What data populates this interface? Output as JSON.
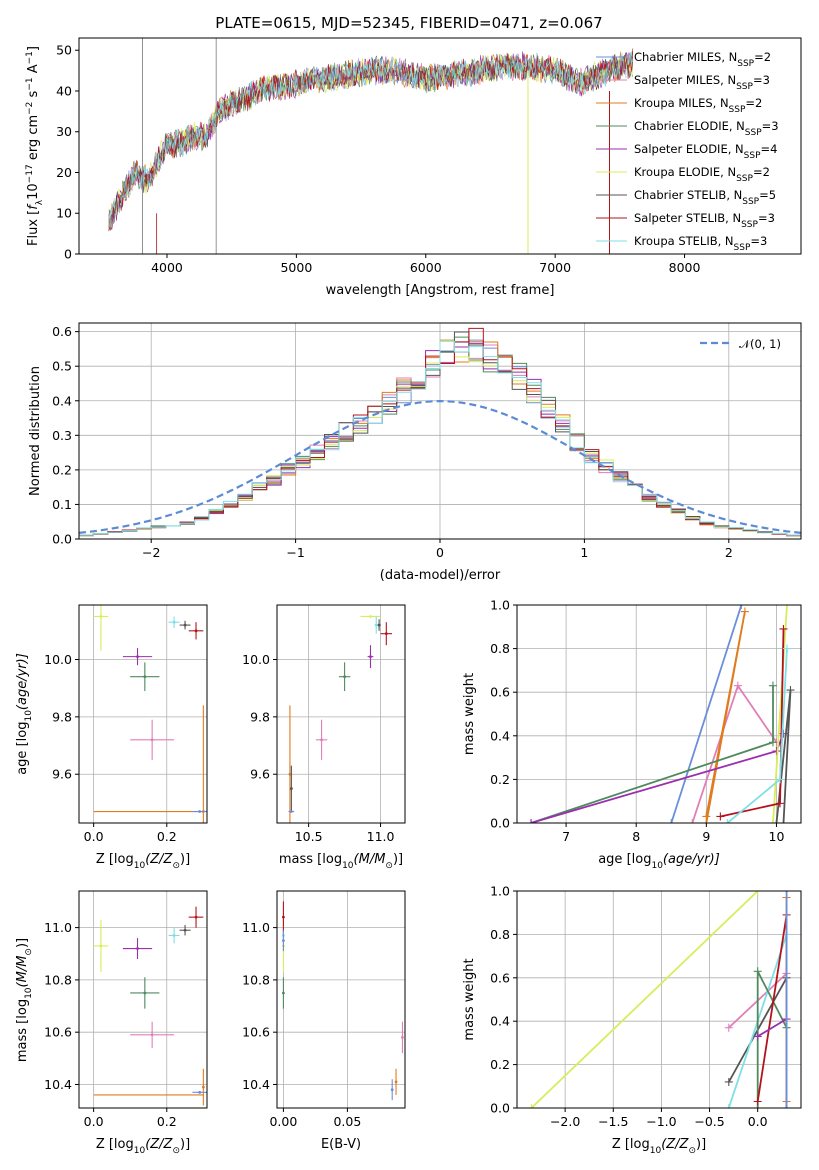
{
  "chart_data": [
    {
      "type": "line",
      "title": "PLATE=0615, MJD=52345, FIBERID=0471, z=0.067",
      "xlabel": "wavelength [Angstrom, rest frame]",
      "ylabel_parts": [
        "Flux [",
        "f",
        "λ",
        "10",
        "−17",
        " erg cm",
        "−2",
        " s",
        "−1",
        " A",
        "−1",
        "]"
      ],
      "xlim": [
        3320,
        8900
      ],
      "ylim": [
        0,
        53
      ],
      "xticks": [
        4000,
        5000,
        6000,
        7000,
        8000
      ],
      "yticks": [
        0,
        10,
        20,
        30,
        40,
        50
      ],
      "legend_position": "upper-right",
      "series": [
        {
          "name": "Chabrier MILES, N",
          "sub": "SSP",
          "suffix": "=2",
          "color": "#6a8fd8"
        },
        {
          "name": "Salpeter MILES, N",
          "sub": "SSP",
          "suffix": "=3",
          "color": "#e07fb8"
        },
        {
          "name": "Kroupa MILES, N",
          "sub": "SSP",
          "suffix": "=2",
          "color": "#e07b1e"
        },
        {
          "name": "Chabrier ELODIE, N",
          "sub": "SSP",
          "suffix": "=3",
          "color": "#4f8a5f"
        },
        {
          "name": "Salpeter ELODIE, N",
          "sub": "SSP",
          "suffix": "=4",
          "color": "#9b2fae"
        },
        {
          "name": "Kroupa ELODIE, N",
          "sub": "SSP",
          "suffix": "=2",
          "color": "#d9ec5a"
        },
        {
          "name": "Chabrier STELIB, N",
          "sub": "SSP",
          "suffix": "=5",
          "color": "#555555"
        },
        {
          "name": "Salpeter STELIB, N",
          "sub": "SSP",
          "suffix": "=3",
          "color": "#b3141c"
        },
        {
          "name": "Kroupa STELIB, N",
          "sub": "SSP",
          "suffix": "=3",
          "color": "#7fdfe6"
        }
      ],
      "spectrum_envelope": {
        "x": [
          3550,
          3650,
          3750,
          3850,
          3950,
          4000,
          4100,
          4200,
          4300,
          4400,
          4500,
          4600,
          4700,
          4800,
          4900,
          5000,
          5200,
          5400,
          5600,
          5800,
          6000,
          6200,
          6400,
          6600,
          6800,
          7000,
          7200,
          7400,
          7600
        ],
        "y": [
          8,
          14,
          20,
          18,
          24,
          27,
          27,
          29,
          29,
          35,
          37,
          38,
          40,
          41,
          41,
          42,
          43,
          44,
          45,
          45,
          43,
          44,
          45,
          46,
          46,
          45,
          42,
          45,
          47
        ]
      }
    },
    {
      "type": "step",
      "xlabel": "(data-model)/error",
      "ylabel": "Normed distribution",
      "xlim": [
        -2.5,
        2.5
      ],
      "ylim": [
        0,
        0.625
      ],
      "xticks": [
        -2,
        -1,
        0,
        1,
        2
      ],
      "yticks": [
        0.0,
        0.1,
        0.2,
        0.3,
        0.4,
        0.5,
        0.6
      ],
      "legend_position": "upper-right",
      "reference_curve": {
        "name_prefix": "𝒩",
        "name_suffix": "(0, 1)",
        "type": "gaussian",
        "mean": 0,
        "sigma": 1,
        "color": "#5b8bd6"
      },
      "bin_width": 0.1,
      "bin_start": -2.5,
      "envelope": [
        0.01,
        0.015,
        0.02,
        0.025,
        0.03,
        0.035,
        0.04,
        0.045,
        0.06,
        0.08,
        0.1,
        0.12,
        0.15,
        0.17,
        0.2,
        0.22,
        0.25,
        0.28,
        0.31,
        0.33,
        0.36,
        0.39,
        0.43,
        0.47,
        0.51,
        0.54,
        0.56,
        0.56,
        0.53,
        0.5,
        0.47,
        0.43,
        0.38,
        0.33,
        0.28,
        0.24,
        0.21,
        0.18,
        0.15,
        0.12,
        0.1,
        0.08,
        0.06,
        0.045,
        0.035,
        0.03,
        0.025,
        0.02,
        0.015,
        0.01
      ]
    },
    {
      "type": "scatter",
      "xlabel_parts": [
        "Z [log",
        "10",
        "(Z/Z",
        "⊙",
        ")]"
      ],
      "ylabel_parts": [
        "age  [log",
        "10",
        "(age/yr)]"
      ],
      "xlim": [
        -0.04,
        0.31
      ],
      "ylim": [
        9.43,
        10.19
      ],
      "xticks": [
        0.0,
        0.2
      ],
      "yticks": [
        9.6,
        9.8,
        10.0
      ],
      "points": [
        {
          "x": 0.02,
          "y": 10.15,
          "xerr": 0.02,
          "yerr": 0.12,
          "color": "#d9ec5a"
        },
        {
          "x": 0.12,
          "y": 10.01,
          "xerr": 0.04,
          "yerr": 0.03,
          "color": "#9b2fae"
        },
        {
          "x": 0.14,
          "y": 9.94,
          "xerr": 0.04,
          "yerr": 0.05,
          "color": "#4f8a5f"
        },
        {
          "x": 0.16,
          "y": 9.72,
          "xerr": 0.06,
          "yerr": 0.07,
          "color": "#e07fb8"
        },
        {
          "x": 0.22,
          "y": 10.13,
          "xerr": 0.015,
          "yerr": 0.02,
          "color": "#7fdfe6"
        },
        {
          "x": 0.25,
          "y": 10.12,
          "xerr": 0.015,
          "yerr": 0.015,
          "color": "#555555"
        },
        {
          "x": 0.28,
          "y": 10.1,
          "xerr": 0.02,
          "yerr": 0.03,
          "color": "#b3141c"
        },
        {
          "x": 0.3,
          "y": 9.47,
          "xerr": 0.0,
          "yerr": 0.37,
          "color": "#e07b1e"
        },
        {
          "x": 0.29,
          "y": 9.47,
          "xerr": 0.02,
          "yerr": 0.0,
          "color": "#6a8fd8"
        }
      ],
      "hlines": [
        {
          "y": 9.47,
          "x0": 0.0,
          "x1": 0.3,
          "color": "#e07b1e"
        }
      ]
    },
    {
      "type": "scatter",
      "xlabel_parts": [
        "mass [log",
        "10",
        "(M/M",
        "⊙",
        ")]"
      ],
      "xlim": [
        10.28,
        11.17
      ],
      "ylim": [
        9.43,
        10.19
      ],
      "xticks": [
        10.5,
        11.0
      ],
      "yticks": [
        9.6,
        9.8,
        10.0
      ],
      "points": [
        {
          "x": 10.93,
          "y": 10.15,
          "xerr": 0.07,
          "yerr": 0.0,
          "color": "#d9ec5a"
        },
        {
          "x": 10.93,
          "y": 10.01,
          "xerr": 0.02,
          "yerr": 0.04,
          "color": "#9b2fae"
        },
        {
          "x": 10.75,
          "y": 9.94,
          "xerr": 0.04,
          "yerr": 0.05,
          "color": "#4f8a5f"
        },
        {
          "x": 10.59,
          "y": 9.72,
          "xerr": 0.04,
          "yerr": 0.07,
          "color": "#e07fb8"
        },
        {
          "x": 10.97,
          "y": 10.12,
          "xerr": 0.01,
          "yerr": 0.03,
          "color": "#7fdfe6"
        },
        {
          "x": 10.99,
          "y": 10.12,
          "xerr": 0.01,
          "yerr": 0.02,
          "color": "#555555"
        },
        {
          "x": 11.04,
          "y": 10.09,
          "xerr": 0.04,
          "yerr": 0.04,
          "color": "#b3141c"
        },
        {
          "x": 10.37,
          "y": 9.6,
          "xerr": 0.0,
          "yerr": 0.24,
          "color": "#e07b1e"
        },
        {
          "x": 10.38,
          "y": 9.55,
          "xerr": 0.0,
          "yerr": 0.08,
          "color": "#555555"
        },
        {
          "x": 10.38,
          "y": 9.47,
          "xerr": 0.02,
          "yerr": 0.0,
          "color": "#6a8fd8"
        }
      ]
    },
    {
      "type": "line",
      "xlabel_parts": [
        "age  [log",
        "10",
        "(age/yr)]"
      ],
      "ylabel": "mass weight",
      "xlim": [
        6.3,
        10.35
      ],
      "ylim": [
        0,
        1.0
      ],
      "xticks": [
        7,
        8,
        9,
        10
      ],
      "yticks": [
        0.0,
        0.2,
        0.4,
        0.6,
        0.8,
        1.0
      ],
      "series": [
        {
          "name": "Chabrier MILES",
          "color": "#6a8fd8",
          "points": [
            [
              8.5,
              0.0
            ],
            [
              9.5,
              1.0
            ]
          ]
        },
        {
          "name": "Salpeter MILES",
          "color": "#e07fb8",
          "points": [
            [
              8.8,
              0.0
            ],
            [
              9.45,
              0.63
            ],
            [
              10.0,
              0.37
            ]
          ]
        },
        {
          "name": "Kroupa MILES",
          "color": "#e07b1e",
          "points": [
            [
              9.0,
              0.03
            ],
            [
              9.55,
              0.97
            ],
            [
              9.0,
              0.0
            ]
          ]
        },
        {
          "name": "Chabrier ELODIE",
          "color": "#4f8a5f",
          "points": [
            [
              6.5,
              0.0
            ],
            [
              9.95,
              0.37
            ],
            [
              9.95,
              0.63
            ]
          ]
        },
        {
          "name": "Salpeter ELODIE",
          "color": "#9b2fae",
          "points": [
            [
              6.5,
              0.0
            ],
            [
              10.0,
              0.33
            ],
            [
              10.1,
              0.41
            ]
          ]
        },
        {
          "name": "Kroupa ELODIE",
          "color": "#d9ec5a",
          "points": [
            [
              9.95,
              0.0
            ],
            [
              10.15,
              1.0
            ]
          ]
        },
        {
          "name": "Chabrier STELIB",
          "color": "#555555",
          "points": [
            [
              10.1,
              0.0
            ],
            [
              10.2,
              0.61
            ],
            [
              10.0,
              0.0
            ]
          ]
        },
        {
          "name": "Salpeter STELIB",
          "color": "#b3141c",
          "points": [
            [
              9.2,
              0.03
            ],
            [
              10.05,
              0.09
            ],
            [
              10.1,
              0.89
            ]
          ]
        },
        {
          "name": "Kroupa STELIB",
          "color": "#7fdfe6",
          "points": [
            [
              9.3,
              0.0
            ],
            [
              10.05,
              0.2
            ],
            [
              10.15,
              0.8
            ]
          ]
        }
      ]
    },
    {
      "type": "scatter",
      "xlabel_parts": [
        "Z [log",
        "10",
        "(Z/Z",
        "⊙",
        ")]"
      ],
      "ylabel_parts": [
        "mass [log",
        "10",
        "(M/M",
        "⊙",
        ")]"
      ],
      "xlim": [
        -0.04,
        0.31
      ],
      "ylim": [
        10.31,
        11.14
      ],
      "xticks": [
        0.0,
        0.2
      ],
      "yticks": [
        10.4,
        10.6,
        10.8,
        11.0
      ],
      "points": [
        {
          "x": 0.02,
          "y": 10.93,
          "xerr": 0.02,
          "yerr": 0.1,
          "color": "#d9ec5a"
        },
        {
          "x": 0.12,
          "y": 10.92,
          "xerr": 0.04,
          "yerr": 0.04,
          "color": "#9b2fae"
        },
        {
          "x": 0.14,
          "y": 10.75,
          "xerr": 0.04,
          "yerr": 0.06,
          "color": "#4f8a5f"
        },
        {
          "x": 0.16,
          "y": 10.59,
          "xerr": 0.06,
          "yerr": 0.05,
          "color": "#e07fb8"
        },
        {
          "x": 0.22,
          "y": 10.97,
          "xerr": 0.015,
          "yerr": 0.03,
          "color": "#7fdfe6"
        },
        {
          "x": 0.25,
          "y": 10.99,
          "xerr": 0.015,
          "yerr": 0.02,
          "color": "#555555"
        },
        {
          "x": 0.28,
          "y": 11.04,
          "xerr": 0.02,
          "yerr": 0.04,
          "color": "#b3141c"
        },
        {
          "x": 0.3,
          "y": 10.39,
          "xerr": 0.0,
          "yerr": 0.07,
          "color": "#e07b1e"
        },
        {
          "x": 0.29,
          "y": 10.37,
          "xerr": 0.02,
          "yerr": 0.0,
          "color": "#6a8fd8"
        }
      ],
      "hlines": [
        {
          "y": 10.36,
          "x0": 0.0,
          "x1": 0.3,
          "color": "#e07b1e"
        }
      ]
    },
    {
      "type": "scatter",
      "xlabel": "E(B-V)",
      "xlim": [
        -0.005,
        0.095
      ],
      "ylim": [
        10.31,
        11.14
      ],
      "xticks": [
        0.0,
        0.05
      ],
      "yticks": [
        10.4,
        10.6,
        10.8,
        11.0
      ],
      "points": [
        {
          "x": 0.0,
          "y": 10.93,
          "xerr": 0.0,
          "yerr": 0.1,
          "color": "#d9ec5a"
        },
        {
          "x": 0.0,
          "y": 10.75,
          "xerr": 0.0,
          "yerr": 0.06,
          "color": "#4f8a5f"
        },
        {
          "x": 0.0,
          "y": 10.97,
          "xerr": 0.0,
          "yerr": 0.03,
          "color": "#7fdfe6"
        },
        {
          "x": 0.0,
          "y": 11.04,
          "xerr": 0.0,
          "yerr": 0.06,
          "color": "#b3141c"
        },
        {
          "x": 0.0,
          "y": 10.95,
          "xerr": 0.0,
          "yerr": 0.04,
          "color": "#6a8fd8"
        },
        {
          "x": 0.085,
          "y": 10.38,
          "xerr": 0.0,
          "yerr": 0.04,
          "color": "#6a8fd8"
        },
        {
          "x": 0.088,
          "y": 10.41,
          "xerr": 0.0,
          "yerr": 0.05,
          "color": "#e07b1e"
        },
        {
          "x": 0.093,
          "y": 10.58,
          "xerr": 0.0,
          "yerr": 0.06,
          "color": "#e07fb8"
        }
      ]
    },
    {
      "type": "line",
      "xlabel_parts": [
        "Z [log",
        "10",
        "(Z/Z",
        "⊙",
        ")]"
      ],
      "ylabel": "mass weight",
      "xlim": [
        -2.5,
        0.45
      ],
      "ylim": [
        0,
        1.0
      ],
      "xticks": [
        -2.0,
        -1.5,
        -1.0,
        -0.5,
        0.0
      ],
      "xtick_labels": [
        "−2.0",
        "−1.5",
        "−1.0",
        "−0.5",
        "0.0"
      ],
      "yticks": [
        0.0,
        0.2,
        0.4,
        0.6,
        0.8,
        1.0
      ],
      "series": [
        {
          "name": "Kroupa ELODIE",
          "color": "#d9ec5a",
          "points": [
            [
              -2.35,
              0.0
            ],
            [
              0.0,
              1.0
            ]
          ]
        },
        {
          "name": "Salpeter MILES",
          "color": "#e07fb8",
          "points": [
            [
              -0.3,
              0.37
            ],
            [
              0.3,
              0.62
            ]
          ]
        },
        {
          "name": "Chabrier STELIB",
          "color": "#555555",
          "points": [
            [
              -0.3,
              0.12
            ],
            [
              0.3,
              0.6
            ]
          ]
        },
        {
          "name": "Kroupa STELIB",
          "color": "#7fdfe6",
          "points": [
            [
              -0.3,
              0.0
            ],
            [
              0.3,
              0.8
            ]
          ]
        },
        {
          "name": "Chabrier ELODIE",
          "color": "#4f8a5f",
          "points": [
            [
              0.0,
              0.0
            ],
            [
              0.0,
              0.63
            ],
            [
              0.3,
              0.37
            ]
          ]
        },
        {
          "name": "Salpeter STELIB",
          "color": "#b3141c",
          "points": [
            [
              0.0,
              0.03
            ],
            [
              0.3,
              0.89
            ],
            [
              0.3,
              0.0
            ]
          ]
        },
        {
          "name": "Salpeter ELODIE",
          "color": "#9b2fae",
          "points": [
            [
              0.0,
              0.33
            ],
            [
              0.3,
              0.41
            ]
          ]
        },
        {
          "name": "Kroupa MILES",
          "color": "#e07b1e",
          "points": [
            [
              0.3,
              0.03
            ],
            [
              0.3,
              0.97
            ]
          ]
        },
        {
          "name": "Chabrier MILES",
          "color": "#6a8fd8",
          "points": [
            [
              0.3,
              0.0
            ],
            [
              0.3,
              1.0
            ]
          ]
        }
      ]
    }
  ]
}
